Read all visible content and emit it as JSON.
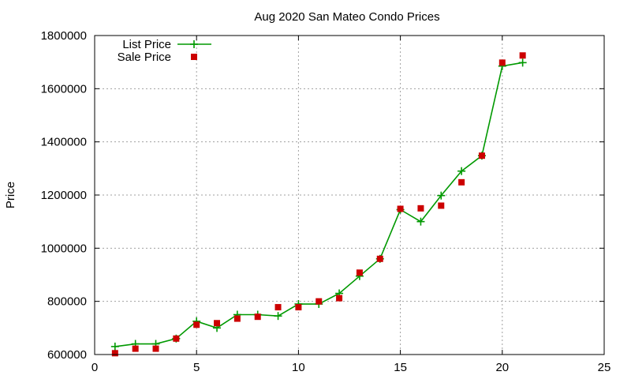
{
  "chart_data": {
    "type": "line",
    "title": "Aug 2020 San Mateo Condo Prices",
    "xlabel": "",
    "ylabel": "Price",
    "xlim": [
      0,
      25
    ],
    "ylim": [
      600000,
      1800000
    ],
    "xticks": [
      "0",
      "5",
      "10",
      "15",
      "20",
      "25"
    ],
    "yticks": [
      "600000",
      "800000",
      "1000000",
      "1200000",
      "1400000",
      "1600000",
      "1800000"
    ],
    "grid": true,
    "legend_position": "top-left",
    "series": [
      {
        "name": "List Price",
        "style": "line-with-plus-markers",
        "color": "#009900",
        "x": [
          1,
          2,
          3,
          4,
          5,
          6,
          7,
          8,
          9,
          10,
          11,
          12,
          13,
          14,
          15,
          16,
          17,
          18,
          19,
          20,
          21
        ],
        "values": [
          630000,
          640000,
          640000,
          660000,
          725000,
          700000,
          750000,
          750000,
          745000,
          790000,
          790000,
          830000,
          895000,
          960000,
          1145000,
          1100000,
          1198000,
          1290000,
          1348000,
          1685000,
          1698000
        ]
      },
      {
        "name": "Sale Price",
        "style": "square-markers",
        "color": "#cc0000",
        "x": [
          1,
          2,
          3,
          4,
          5,
          6,
          7,
          8,
          9,
          10,
          11,
          12,
          13,
          14,
          15,
          16,
          17,
          18,
          19,
          20,
          21
        ],
        "values": [
          605000,
          622000,
          622000,
          660000,
          712000,
          718000,
          735000,
          742000,
          778000,
          778000,
          800000,
          812000,
          908000,
          960000,
          1148000,
          1150000,
          1160000,
          1248000,
          1348000,
          1698000,
          1725000
        ]
      }
    ]
  }
}
